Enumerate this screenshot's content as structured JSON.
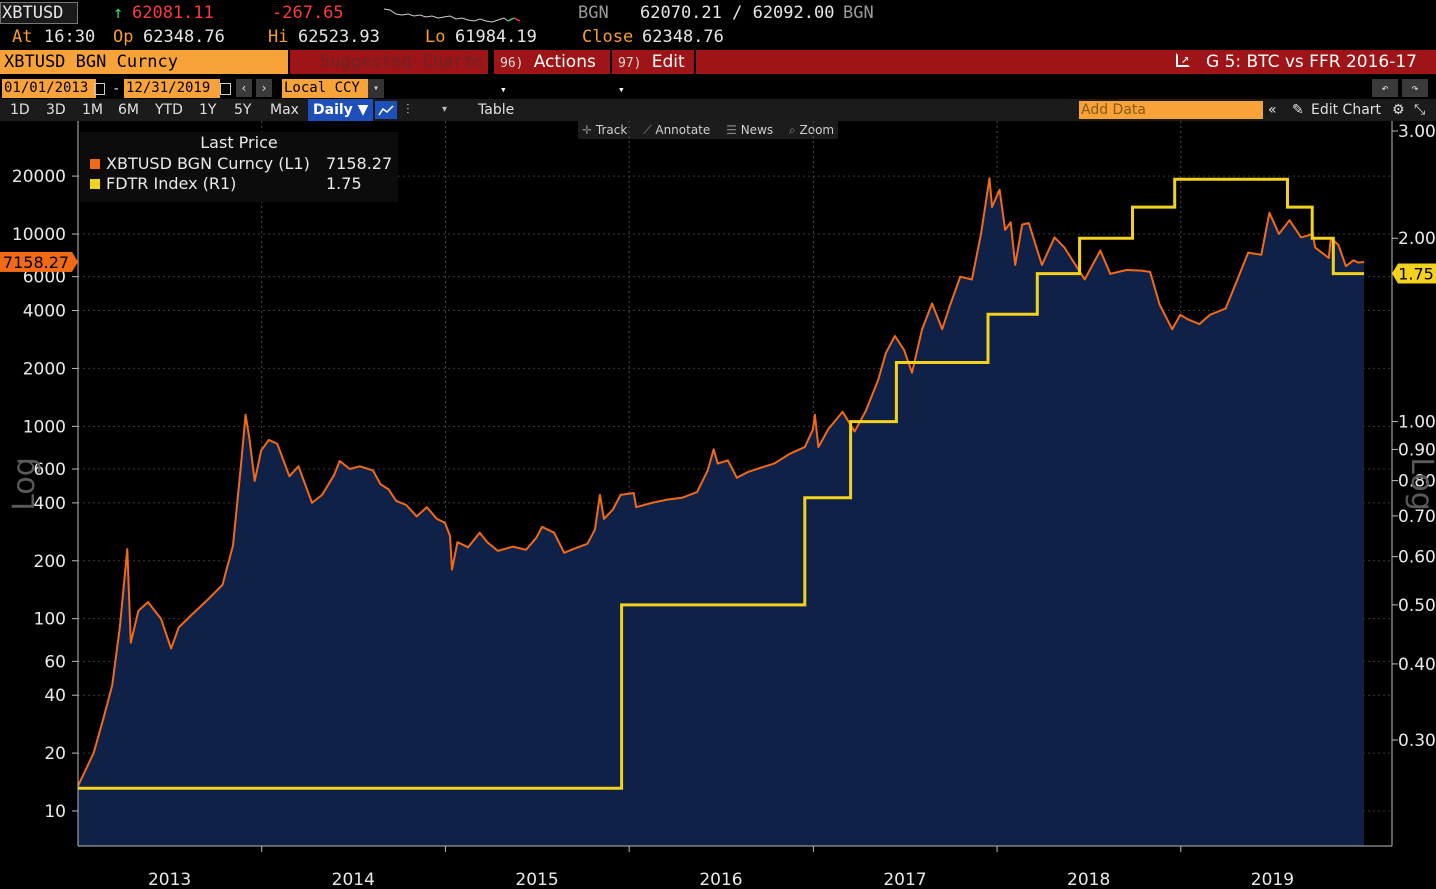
{
  "quote": {
    "ticker": "XBTUSD",
    "arrow": "↑",
    "last": "62081.11",
    "change": "-267.65",
    "source1": "BGN",
    "bid_ask": "62070.21 / 62092.00",
    "source2": "BGN",
    "at_label": "At",
    "at_time": "16:30",
    "op_label": "Op",
    "op": "62348.76",
    "hi_label": "Hi",
    "hi": "62523.93",
    "lo_label": "Lo",
    "lo": "61984.19",
    "close_label": "Close",
    "close": "62348.76"
  },
  "menubar": {
    "security": "XBTUSD BGN Curncy",
    "suggested": "Suggested Charts",
    "actions_num": "96)",
    "actions": "Actions",
    "edit_num": "97)",
    "edit": "Edit",
    "chart_title": "G 5: BTC vs FFR 2016-17"
  },
  "range": {
    "start": "01/01/2013",
    "sep": "-",
    "end": "12/31/2019",
    "currency": "Local CCY"
  },
  "toolbar": {
    "periods": [
      "1D",
      "3D",
      "1M",
      "6M",
      "YTD",
      "1Y",
      "5Y",
      "Max"
    ],
    "frequency": "Daily",
    "table": "Table",
    "add_data": "Add Data",
    "edit_chart": "Edit Chart"
  },
  "chart_tools": {
    "track": "Track",
    "annotate": "Annotate",
    "news": "News",
    "zoom": "Zoom"
  },
  "legend": {
    "header": "Last Price",
    "series": [
      {
        "name": "XBTUSD BGN Curncy  (L1)",
        "value": "7158.27",
        "color": "#f26a16"
      },
      {
        "name": "FDTR Index  (R1)",
        "value": "1.75",
        "color": "#f2d21c"
      }
    ]
  },
  "chart_data": {
    "type": "line",
    "x_labels": [
      "2013",
      "2014",
      "2015",
      "2016",
      "2017",
      "2018",
      "2019"
    ],
    "left_axis": {
      "title": "Log",
      "scale": "log",
      "ticks": [
        "10",
        "20",
        "40",
        "60",
        "100",
        "200",
        "400",
        "600",
        "1000",
        "2000",
        "4000",
        "6000",
        "10000",
        "20000"
      ],
      "last_label": "7158.27"
    },
    "right_axis": {
      "title": "Log",
      "scale": "log",
      "ticks": [
        "0.30",
        "0.40",
        "0.50",
        "0.60",
        "0.70",
        "0.80",
        "0.90",
        "1.00",
        "2.00",
        "3.00"
      ],
      "last_label": "1.75"
    },
    "series": [
      {
        "name": "XBTUSD BGN Curncy",
        "axis": "left",
        "color": "#f26a16",
        "fill": "#0f2147",
        "points": [
          [
            "2013-01-01",
            13.5
          ],
          [
            "2013-02-01",
            20
          ],
          [
            "2013-02-20",
            30
          ],
          [
            "2013-03-10",
            45
          ],
          [
            "2013-03-25",
            90
          ],
          [
            "2013-04-09",
            230
          ],
          [
            "2013-04-16",
            75
          ],
          [
            "2013-05-01",
            110
          ],
          [
            "2013-05-20",
            122
          ],
          [
            "2013-06-15",
            100
          ],
          [
            "2013-07-05",
            70
          ],
          [
            "2013-07-20",
            90
          ],
          [
            "2013-08-15",
            105
          ],
          [
            "2013-09-15",
            125
          ],
          [
            "2013-10-15",
            150
          ],
          [
            "2013-11-05",
            240
          ],
          [
            "2013-11-20",
            600
          ],
          [
            "2013-11-30",
            1150
          ],
          [
            "2013-12-08",
            850
          ],
          [
            "2013-12-18",
            520
          ],
          [
            "2013-12-31",
            750
          ],
          [
            "2014-01-15",
            850
          ],
          [
            "2014-02-01",
            810
          ],
          [
            "2014-02-25",
            550
          ],
          [
            "2014-03-15",
            620
          ],
          [
            "2014-04-11",
            400
          ],
          [
            "2014-05-01",
            440
          ],
          [
            "2014-05-25",
            560
          ],
          [
            "2014-06-05",
            660
          ],
          [
            "2014-06-25",
            600
          ],
          [
            "2014-07-15",
            620
          ],
          [
            "2014-08-10",
            590
          ],
          [
            "2014-08-25",
            500
          ],
          [
            "2014-09-10",
            470
          ],
          [
            "2014-09-25",
            410
          ],
          [
            "2014-10-15",
            390
          ],
          [
            "2014-11-05",
            340
          ],
          [
            "2014-11-25",
            380
          ],
          [
            "2014-12-15",
            330
          ],
          [
            "2014-12-31",
            315
          ],
          [
            "2015-01-10",
            270
          ],
          [
            "2015-01-14",
            180
          ],
          [
            "2015-01-25",
            250
          ],
          [
            "2015-02-15",
            235
          ],
          [
            "2015-03-10",
            280
          ],
          [
            "2015-03-25",
            250
          ],
          [
            "2015-04-15",
            225
          ],
          [
            "2015-05-15",
            237
          ],
          [
            "2015-06-10",
            228
          ],
          [
            "2015-06-30",
            262
          ],
          [
            "2015-07-12",
            300
          ],
          [
            "2015-08-05",
            280
          ],
          [
            "2015-08-25",
            220
          ],
          [
            "2015-09-15",
            232
          ],
          [
            "2015-10-10",
            245
          ],
          [
            "2015-10-25",
            290
          ],
          [
            "2015-11-04",
            440
          ],
          [
            "2015-11-12",
            330
          ],
          [
            "2015-11-30",
            370
          ],
          [
            "2015-12-15",
            440
          ],
          [
            "2016-01-10",
            450
          ],
          [
            "2016-01-15",
            380
          ],
          [
            "2016-02-15",
            400
          ],
          [
            "2016-03-15",
            415
          ],
          [
            "2016-04-15",
            425
          ],
          [
            "2016-05-15",
            455
          ],
          [
            "2016-06-05",
            590
          ],
          [
            "2016-06-17",
            760
          ],
          [
            "2016-06-25",
            640
          ],
          [
            "2016-07-15",
            665
          ],
          [
            "2016-08-02",
            540
          ],
          [
            "2016-08-25",
            580
          ],
          [
            "2016-09-15",
            605
          ],
          [
            "2016-10-15",
            640
          ],
          [
            "2016-11-15",
            720
          ],
          [
            "2016-12-15",
            780
          ],
          [
            "2016-12-31",
            960
          ],
          [
            "2017-01-04",
            1150
          ],
          [
            "2017-01-11",
            780
          ],
          [
            "2017-01-31",
            970
          ],
          [
            "2017-02-28",
            1190
          ],
          [
            "2017-03-24",
            940
          ],
          [
            "2017-04-15",
            1200
          ],
          [
            "2017-05-10",
            1750
          ],
          [
            "2017-05-25",
            2400
          ],
          [
            "2017-06-12",
            2950
          ],
          [
            "2017-06-30",
            2500
          ],
          [
            "2017-07-16",
            1900
          ],
          [
            "2017-08-05",
            3200
          ],
          [
            "2017-08-25",
            4350
          ],
          [
            "2017-09-14",
            3200
          ],
          [
            "2017-09-30",
            4300
          ],
          [
            "2017-10-20",
            6000
          ],
          [
            "2017-11-12",
            5800
          ],
          [
            "2017-11-30",
            10000
          ],
          [
            "2017-12-17",
            19500
          ],
          [
            "2017-12-22",
            13800
          ],
          [
            "2018-01-06",
            17000
          ],
          [
            "2018-01-17",
            10500
          ],
          [
            "2018-01-28",
            11500
          ],
          [
            "2018-02-06",
            6900
          ],
          [
            "2018-02-20",
            11200
          ],
          [
            "2018-03-05",
            11400
          ],
          [
            "2018-03-31",
            6900
          ],
          [
            "2018-04-25",
            9600
          ],
          [
            "2018-05-15",
            8500
          ],
          [
            "2018-06-24",
            5800
          ],
          [
            "2018-07-25",
            8200
          ],
          [
            "2018-08-14",
            6200
          ],
          [
            "2018-09-15",
            6500
          ],
          [
            "2018-10-15",
            6450
          ],
          [
            "2018-11-01",
            6350
          ],
          [
            "2018-11-20",
            4300
          ],
          [
            "2018-12-15",
            3200
          ],
          [
            "2018-12-31",
            3800
          ],
          [
            "2019-01-15",
            3600
          ],
          [
            "2019-02-07",
            3400
          ],
          [
            "2019-02-28",
            3800
          ],
          [
            "2019-03-31",
            4100
          ],
          [
            "2019-04-15",
            5100
          ],
          [
            "2019-05-15",
            8000
          ],
          [
            "2019-06-10",
            7800
          ],
          [
            "2019-06-26",
            12900
          ],
          [
            "2019-07-15",
            10000
          ],
          [
            "2019-08-05",
            11800
          ],
          [
            "2019-08-28",
            9600
          ],
          [
            "2019-09-20",
            10000
          ],
          [
            "2019-09-25",
            8500
          ],
          [
            "2019-10-22",
            7500
          ],
          [
            "2019-10-26",
            9500
          ],
          [
            "2019-11-10",
            8800
          ],
          [
            "2019-11-25",
            6800
          ],
          [
            "2019-12-10",
            7300
          ],
          [
            "2019-12-20",
            7100
          ],
          [
            "2019-12-31",
            7158.27
          ]
        ]
      },
      {
        "name": "FDTR Index",
        "axis": "right",
        "color": "#f2d21c",
        "step": true,
        "points": [
          [
            "2013-01-01",
            0.25
          ],
          [
            "2015-12-17",
            0.5
          ],
          [
            "2016-12-15",
            0.75
          ],
          [
            "2017-03-16",
            1.0
          ],
          [
            "2017-06-15",
            1.25
          ],
          [
            "2017-12-14",
            1.5
          ],
          [
            "2018-03-22",
            1.75
          ],
          [
            "2018-06-14",
            2.0
          ],
          [
            "2018-09-27",
            2.25
          ],
          [
            "2018-12-20",
            2.5
          ],
          [
            "2019-08-01",
            2.25
          ],
          [
            "2019-09-19",
            2.0
          ],
          [
            "2019-10-31",
            1.75
          ],
          [
            "2019-12-31",
            1.75
          ]
        ]
      }
    ]
  }
}
